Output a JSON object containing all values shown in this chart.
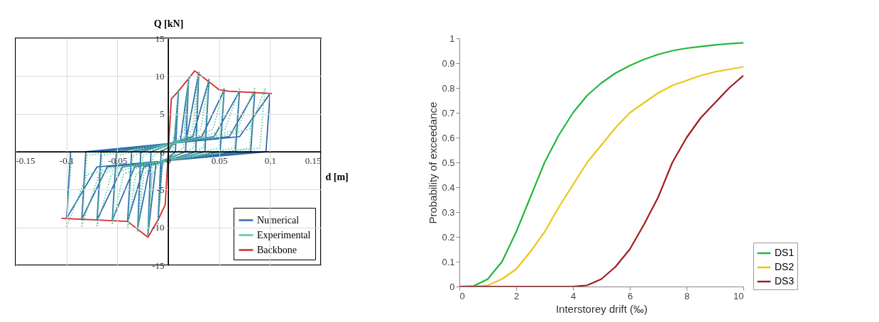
{
  "chart_data": [
    {
      "type": "line",
      "xlabel": "d [m]",
      "ylabel": "Q [kN]",
      "xlim": [
        -0.15,
        0.15
      ],
      "ylim": [
        -15,
        15
      ],
      "xticks": [
        -0.15,
        -0.1,
        -0.05,
        0,
        0.05,
        0.1,
        0.15
      ],
      "yticks": [
        -15,
        -10,
        -5,
        0,
        5,
        10,
        15
      ],
      "grid": true,
      "legend": "bottom right",
      "series": [
        {
          "name": "Numerical",
          "color": "#2f6fae",
          "type": "line",
          "x": [
            0,
            0.006,
            0.01,
            0.007,
            -0.006,
            -0.01,
            -0.007,
            0.012,
            0.02,
            0.017,
            -0.012,
            -0.02,
            -0.017,
            0.018,
            0.03,
            0.027,
            -0.018,
            -0.03,
            -0.027,
            0.024,
            0.04,
            0.036,
            -0.024,
            -0.04,
            -0.036,
            0.033,
            0.055,
            0.051,
            -0.033,
            -0.055,
            -0.051,
            0.045,
            0.07,
            0.066,
            -0.045,
            -0.07,
            -0.066,
            0.06,
            0.085,
            0.081,
            -0.06,
            -0.085,
            -0.081,
            0.07,
            0.1,
            0.096,
            -0.07,
            -0.1,
            -0.096
          ],
          "values": [
            0,
            1.5,
            8,
            0,
            -1.5,
            -9,
            0,
            1.5,
            9.5,
            0,
            -1.5,
            -11,
            0,
            1.8,
            10.5,
            0,
            -1.8,
            -10,
            0,
            2,
            9.5,
            0,
            -2,
            -9.2,
            0,
            2,
            8.2,
            0,
            -2,
            -9,
            0,
            2,
            8,
            0,
            -2,
            -9,
            0,
            2,
            7.9,
            0,
            -2,
            -8.9,
            0,
            2,
            7.7,
            0,
            -2,
            -8.8,
            0
          ]
        },
        {
          "name": "Experimental",
          "color": "#5cc79a",
          "type": "line",
          "line_style": "dotted",
          "x": [
            0.005,
            0.008,
            0.01,
            0.005,
            -0.005,
            -0.008,
            -0.01,
            -0.005,
            0.01,
            0.016,
            0.02,
            0.015,
            -0.01,
            -0.016,
            -0.02,
            -0.015,
            0.015,
            0.024,
            0.03,
            0.025,
            -0.015,
            -0.024,
            -0.03,
            -0.025,
            0.02,
            0.032,
            0.04,
            0.035,
            -0.02,
            -0.032,
            -0.04,
            -0.035,
            0.028,
            0.044,
            0.055,
            0.05,
            -0.028,
            -0.044,
            -0.055,
            -0.05,
            0.035,
            0.056,
            0.07,
            0.065,
            -0.035,
            -0.056,
            -0.07,
            -0.065,
            0.043,
            0.068,
            0.085,
            0.08,
            -0.043,
            -0.068,
            -0.085,
            -0.08,
            0.05,
            0.08,
            0.095,
            0.09,
            -0.05,
            -0.08,
            -0.1,
            -0.095
          ],
          "values": [
            1.8,
            3,
            8.3,
            0.5,
            -1.8,
            -3,
            -9.5,
            -0.5,
            1.8,
            3,
            9.8,
            0.5,
            -1.8,
            -3,
            -11,
            -0.5,
            1.8,
            3,
            10.6,
            0.5,
            -1.8,
            -3,
            -10.5,
            -0.5,
            2,
            3,
            9.8,
            0.5,
            -2,
            -3,
            -10.2,
            -0.5,
            2,
            3,
            8.5,
            0.5,
            -2,
            -3,
            -9.5,
            -0.5,
            2,
            3,
            8.3,
            0.5,
            -2,
            -3,
            -9.8,
            -0.5,
            2,
            3,
            8.5,
            0.5,
            -2,
            -3,
            -9.8,
            -0.5,
            2,
            3,
            8.3,
            0.5,
            -2,
            -3,
            -10,
            -0.5
          ]
        },
        {
          "name": "Backbone",
          "color": "#d42a2a",
          "type": "line",
          "x": [
            -0.105,
            -0.04,
            -0.02,
            -0.01,
            -0.003,
            0,
            0.003,
            0.01,
            0.026,
            0.05,
            0.06,
            0.102
          ],
          "values": [
            -8.8,
            -9.2,
            -11.3,
            -9,
            -7,
            0,
            7,
            8,
            10.7,
            8.2,
            8,
            7.7
          ]
        }
      ]
    },
    {
      "type": "line",
      "xlabel": "Interstorey drift (‰)",
      "ylabel": "Probability of exceedance",
      "xlim": [
        0,
        10
      ],
      "ylim": [
        0,
        1
      ],
      "xticks": [
        0,
        2,
        4,
        6,
        8,
        10
      ],
      "yticks": [
        0,
        0.1,
        0.2,
        0.3,
        0.4,
        0.5,
        0.6,
        0.7,
        0.8,
        0.9,
        1
      ],
      "legend": "right",
      "x": [
        0,
        0.5,
        1,
        1.5,
        2,
        2.5,
        3,
        3.5,
        4,
        4.5,
        5,
        5.5,
        6,
        6.5,
        7,
        7.5,
        8,
        8.5,
        9,
        9.5,
        10
      ],
      "series": [
        {
          "name": "DS1",
          "color": "#22b83a",
          "values": [
            0,
            0.002,
            0.03,
            0.1,
            0.22,
            0.36,
            0.5,
            0.61,
            0.7,
            0.77,
            0.82,
            0.86,
            0.89,
            0.915,
            0.935,
            0.95,
            0.96,
            0.967,
            0.973,
            0.978,
            0.982
          ]
        },
        {
          "name": "DS2",
          "color": "#f0c419",
          "values": [
            0,
            0,
            0.005,
            0.03,
            0.07,
            0.14,
            0.22,
            0.32,
            0.41,
            0.5,
            0.57,
            0.64,
            0.7,
            0.74,
            0.78,
            0.81,
            0.83,
            0.85,
            0.865,
            0.875,
            0.885
          ]
        },
        {
          "name": "DS3",
          "color": "#a01c1c",
          "values": [
            0,
            0,
            0,
            0,
            0,
            0,
            0,
            0,
            0,
            0.005,
            0.03,
            0.08,
            0.15,
            0.25,
            0.36,
            0.5,
            0.6,
            0.68,
            0.74,
            0.8,
            0.85
          ]
        }
      ]
    }
  ]
}
